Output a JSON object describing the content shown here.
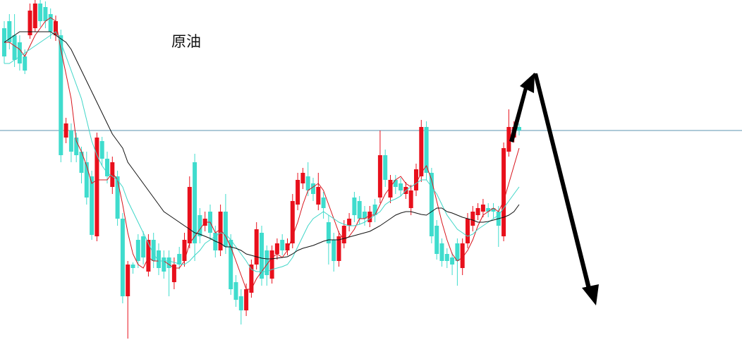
{
  "chart_data": {
    "type": "candlestick",
    "title": "原油",
    "up_color": "#e8101c",
    "down_color": "#3fdccd",
    "ylim": [
      18,
      500
    ],
    "reference_line": {
      "value": 315,
      "color": "#5b95b0"
    },
    "open": [
      460,
      470,
      450,
      440,
      420,
      450,
      460,
      495,
      490,
      480,
      450,
      450,
      305,
      315,
      305,
      285,
      270,
      250,
      165,
      300,
      275,
      235,
      250,
      190,
      80,
      125,
      160,
      165,
      115,
      160,
      145,
      135,
      135,
      100,
      140,
      130,
      155,
      270,
      195,
      180,
      200,
      170,
      145,
      200,
      160,
      100,
      80,
      60,
      85,
      125,
      170,
      145,
      105,
      140,
      160,
      145,
      155,
      210,
      240,
      250,
      240,
      210,
      220,
      185,
      160,
      130,
      155,
      180,
      220,
      215,
      200,
      185,
      210,
      220,
      280,
      220,
      245,
      240,
      225,
      205,
      230,
      250,
      320,
      255,
      180,
      155,
      140,
      135,
      155,
      120,
      155,
      180,
      195,
      200,
      205,
      205,
      200,
      165,
      285,
      305,
      320
    ],
    "high": [
      470,
      480,
      480,
      450,
      430,
      495,
      500,
      500,
      498,
      488,
      478,
      458,
      333,
      325,
      312,
      292,
      285,
      258,
      312,
      306,
      285,
      278,
      258,
      198,
      130,
      128,
      168,
      172,
      168,
      170,
      155,
      145,
      145,
      135,
      150,
      170,
      250,
      282,
      205,
      200,
      210,
      180,
      210,
      225,
      168,
      110,
      90,
      98,
      132,
      185,
      180,
      152,
      152,
      162,
      168,
      162,
      225,
      255,
      262,
      270,
      248,
      255,
      228,
      195,
      170,
      172,
      188,
      198,
      228,
      222,
      208,
      208,
      218,
      315,
      288,
      252,
      252,
      248,
      242,
      238,
      268,
      330,
      328,
      262,
      188,
      162,
      148,
      142,
      162,
      162,
      198,
      208,
      212,
      218,
      212,
      212,
      208,
      298,
      345,
      328,
      325
    ],
    "low": [
      410,
      430,
      405,
      400,
      395,
      445,
      455,
      462,
      460,
      445,
      442,
      270,
      297,
      270,
      270,
      240,
      210,
      160,
      158,
      265,
      240,
      225,
      180,
      70,
      20,
      112,
      120,
      125,
      108,
      120,
      110,
      105,
      80,
      90,
      118,
      122,
      148,
      130,
      155,
      172,
      160,
      135,
      137,
      140,
      82,
      65,
      40,
      52,
      78,
      118,
      95,
      95,
      98,
      132,
      138,
      138,
      148,
      202,
      232,
      222,
      215,
      202,
      190,
      125,
      115,
      122,
      148,
      172,
      185,
      182,
      180,
      178,
      185,
      212,
      235,
      212,
      225,
      222,
      218,
      195,
      222,
      242,
      245,
      155,
      132,
      122,
      120,
      110,
      95,
      110,
      148,
      172,
      188,
      192,
      192,
      190,
      150,
      158,
      278,
      298,
      308
    ],
    "close": [
      420,
      440,
      415,
      410,
      400,
      485,
      495,
      470,
      470,
      455,
      470,
      280,
      325,
      285,
      280,
      255,
      220,
      167,
      305,
      275,
      250,
      270,
      190,
      80,
      125,
      120,
      130,
      135,
      160,
      130,
      120,
      115,
      120,
      125,
      125,
      160,
      235,
      155,
      165,
      190,
      170,
      145,
      200,
      150,
      90,
      75,
      60,
      90,
      125,
      175,
      105,
      110,
      145,
      155,
      145,
      155,
      215,
      245,
      255,
      230,
      225,
      235,
      205,
      155,
      130,
      165,
      180,
      190,
      195,
      190,
      190,
      200,
      195,
      280,
      245,
      245,
      235,
      230,
      235,
      230,
      260,
      320,
      255,
      165,
      140,
      130,
      130,
      125,
      130,
      155,
      190,
      200,
      205,
      210,
      200,
      200,
      180,
      290,
      320,
      320,
      315
    ],
    "series": [
      {
        "color": "#d8141c",
        "values": [
          440,
          440,
          435,
          430,
          420,
          435,
          450,
          460,
          470,
          475,
          470,
          430,
          395,
          360,
          300,
          285,
          265,
          240,
          245,
          245,
          245,
          255,
          245,
          210,
          170,
          140,
          125,
          120,
          135,
          130,
          130,
          130,
          125,
          120,
          120,
          130,
          155,
          165,
          175,
          185,
          185,
          170,
          175,
          165,
          150,
          130,
          110,
          90,
          90,
          105,
          115,
          125,
          135,
          140,
          135,
          145,
          165,
          185,
          210,
          230,
          235,
          240,
          230,
          210,
          190,
          170,
          160,
          165,
          175,
          190,
          190,
          195,
          195,
          210,
          225,
          235,
          245,
          250,
          240,
          235,
          240,
          255,
          265,
          245,
          215,
          185,
          160,
          140,
          130,
          135,
          145,
          160,
          180,
          195,
          200,
          205,
          200,
          215,
          240,
          265,
          290
        ]
      },
      {
        "color": "#3fd6c8",
        "values": [
          410,
          410,
          415,
          420,
          425,
          430,
          435,
          440,
          445,
          450,
          455,
          440,
          420,
          400,
          380,
          360,
          330,
          300,
          280,
          265,
          255,
          250,
          245,
          235,
          215,
          200,
          185,
          170,
          155,
          140,
          130,
          130,
          130,
          128,
          126,
          125,
          130,
          138,
          145,
          155,
          160,
          165,
          170,
          168,
          160,
          150,
          140,
          130,
          118,
          115,
          115,
          115,
          118,
          120,
          122,
          125,
          135,
          150,
          165,
          180,
          190,
          195,
          200,
          195,
          190,
          185,
          182,
          180,
          180,
          182,
          185,
          190,
          195,
          200,
          210,
          215,
          218,
          222,
          230,
          235,
          240,
          245,
          245,
          235,
          225,
          210,
          195,
          185,
          175,
          170,
          165,
          168,
          175,
          180,
          185,
          190,
          195,
          205,
          215,
          225,
          235
        ]
      },
      {
        "color": "#111111",
        "values": [
          440,
          445,
          450,
          455,
          455,
          455,
          455,
          455,
          455,
          455,
          450,
          445,
          440,
          430,
          415,
          400,
          385,
          370,
          355,
          340,
          325,
          310,
          300,
          290,
          270,
          260,
          250,
          240,
          230,
          220,
          210,
          200,
          195,
          190,
          185,
          180,
          175,
          170,
          168,
          165,
          162,
          158,
          155,
          150,
          150,
          148,
          145,
          140,
          138,
          136,
          134,
          133,
          133,
          134,
          135,
          136,
          140,
          145,
          148,
          150,
          152,
          155,
          158,
          160,
          160,
          160,
          162,
          164,
          166,
          168,
          170,
          172,
          176,
          180,
          185,
          190,
          195,
          198,
          200,
          200,
          198,
          196,
          195,
          200,
          205,
          205,
          200,
          198,
          195,
          192,
          190,
          188,
          185,
          185,
          186,
          188,
          190,
          192,
          195,
          200,
          210
        ]
      }
    ]
  }
}
